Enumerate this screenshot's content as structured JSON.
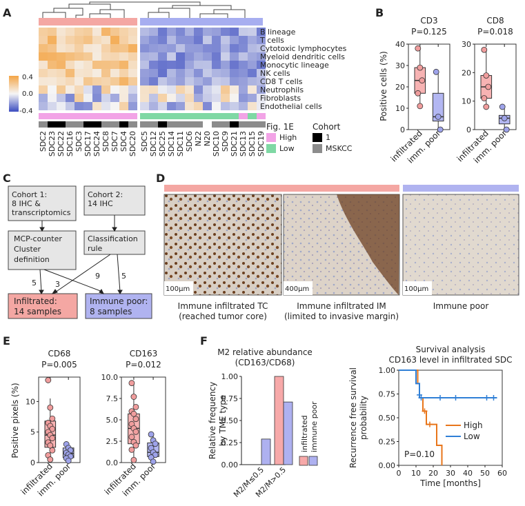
{
  "panel_labels": [
    "A",
    "B",
    "C",
    "D",
    "E",
    "F"
  ],
  "heatmap": {
    "type": "heatmap",
    "samples": [
      "SDC2",
      "SDC23",
      "SDC22",
      "SDC16",
      "SDC3",
      "SDC17",
      "SDC24",
      "SDC8",
      "SDC7",
      "SDC4",
      "SDC20",
      "SDC5",
      "SDC12",
      "SDC25",
      "SDC14",
      "SDC11",
      "SDC6",
      "N22",
      "N20",
      "SDC10",
      "SDC9",
      "SDC21",
      "SDC13",
      "SDC15",
      "SDC19"
    ],
    "cell_types": [
      "B lineage",
      "T cells",
      "Cytotoxic lymphocytes",
      "Myeloid dendritic cells",
      "Monocytic lineage",
      "NK cells",
      "CD8 T cells",
      "Neutrophils",
      "Fibroblasts",
      "Endothelial cells"
    ],
    "color_scale": {
      "ticks": [
        "0.4",
        "0.0",
        "-0.4"
      ],
      "low": "#3b4cc0",
      "mid": "#f5f5f5",
      "high": "#f4a546"
    },
    "fig1e_labels": {
      "title": "Fig. 1E",
      "high": "High",
      "low": "Low",
      "high_color": "#f2a3e6",
      "low_color": "#7fd8a4"
    },
    "cohort_labels": {
      "title": "Cohort",
      "c1": "1",
      "mskcc": "MSKCC",
      "c1_color": "#000000",
      "mskcc_color": "#8c8c8c"
    },
    "group_bar_colors": {
      "infiltrated": "#f4a7a3",
      "poor": "#a7aef0"
    }
  },
  "panel_b": {
    "ylabel": "Positive cells (%)",
    "plots": [
      {
        "title": "CD3",
        "pvalue": "P=0.125",
        "ylim": [
          0,
          40
        ],
        "ticks": [
          0,
          10,
          20,
          30,
          40
        ],
        "groups": [
          {
            "name": "infiltrated",
            "q1": 17,
            "median": 23,
            "q3": 29,
            "min": 11,
            "max": 38,
            "points": [
              38,
              29,
              23,
              17,
              11
            ]
          },
          {
            "name": "imm. poor",
            "q1": 4,
            "median": 6,
            "q3": 17,
            "min": 0,
            "max": 27,
            "points": [
              27,
              6,
              0
            ]
          }
        ]
      },
      {
        "title": "CD8",
        "pvalue": "P=0.018",
        "ylim": [
          0,
          30
        ],
        "ticks": [
          0,
          10,
          20,
          30
        ],
        "groups": [
          {
            "name": "infiltrated",
            "q1": 11,
            "median": 15,
            "q3": 19,
            "min": 8,
            "max": 28,
            "points": [
              28,
              19,
              15,
              11,
              8
            ]
          },
          {
            "name": "imm. poor",
            "q1": 2,
            "median": 4,
            "q3": 5,
            "min": 0,
            "max": 8,
            "points": [
              8,
              4,
              0
            ]
          }
        ]
      }
    ],
    "xlabels": [
      "infiltrated",
      "imm. poor"
    ],
    "colors": {
      "infiltrated": "#f7b3b3",
      "poor": "#b3b7f2",
      "inf_pt": "#f09d9d",
      "poor_pt": "#9ea3ea"
    }
  },
  "panel_c": {
    "cohort1": "Cohort 1:\n8 IHC &\ntranscriptomics",
    "cohort2": "Cohort 2:\n14 IHC",
    "mcp": "MCP-counter\nCluster\ndefinition",
    "rule": "Classification\nrule",
    "infiltrated": "Infiltrated:\n14 samples",
    "poor": "Immune poor:\n8 samples",
    "arrow_counts": [
      "5",
      "3",
      "9",
      "5"
    ]
  },
  "panel_d": {
    "captions": [
      "Immune infiltrated TC\n(reached tumor core)",
      "Immune infiltrated IM\n(limited to invasive margin)",
      "Immune poor"
    ],
    "scalebars": [
      "100µm",
      "400µm",
      "100µm"
    ]
  },
  "panel_e": {
    "ylabel": "Positive pixels (%)",
    "plots": [
      {
        "title": "CD68",
        "pvalue": "P=0.005",
        "ylim": [
          0,
          14
        ],
        "ticks": [
          0.0,
          5.0,
          10.0
        ],
        "tick_labels": [
          "0",
          "5",
          "10"
        ],
        "groups": [
          {
            "name": "infiltrated",
            "q1": 2.5,
            "median": 4.5,
            "q3": 6.8,
            "min": 0.5,
            "max": 10.5,
            "points": [
              13.5,
              9.0,
              7.2,
              6.5,
              6.0,
              5.5,
              5.0,
              4.5,
              4.0,
              3.3,
              2.8,
              2.0,
              1.2,
              0.5
            ]
          },
          {
            "name": "imm. poor",
            "q1": 0.8,
            "median": 1.5,
            "q3": 2.4,
            "min": 0.3,
            "max": 3.0,
            "points": [
              3.0,
              2.4,
              2.0,
              1.6,
              1.3,
              1.0,
              0.7,
              0.3
            ]
          }
        ]
      },
      {
        "title": "CD163",
        "pvalue": "P=0.012",
        "ylim": [
          0,
          10
        ],
        "ticks": [
          0.0,
          2.5,
          5.0,
          7.5,
          10.0
        ],
        "tick_labels": [
          "0.0",
          "2.5",
          "5.0",
          "7.5",
          "10.0"
        ],
        "groups": [
          {
            "name": "infiltrated",
            "q1": 2.2,
            "median": 4.0,
            "q3": 5.7,
            "min": 0.3,
            "max": 9.3,
            "points": [
              9.3,
              7.7,
              6.5,
              6.0,
              5.7,
              5.1,
              4.5,
              4.0,
              3.6,
              3.0,
              2.4,
              2.0,
              1.5,
              0.3
            ]
          },
          {
            "name": "imm. poor",
            "q1": 0.7,
            "median": 1.2,
            "q3": 2.3,
            "min": 0.1,
            "max": 3.3,
            "points": [
              3.3,
              2.6,
              2.2,
              1.7,
              1.2,
              0.9,
              0.6,
              0.1
            ]
          }
        ]
      }
    ],
    "xlabels": [
      "infiltrated",
      "imm. poor"
    ]
  },
  "panel_f_bar": {
    "type": "bar",
    "title": "M2 relative abundance\n(CD163/CD68)",
    "ylabel": "Relative frequency\nby TME type",
    "categories": [
      "M2/M≤0.5",
      "M2/M>0.5"
    ],
    "series": [
      {
        "name": "infiltrated",
        "values": [
          0.0,
          1.0
        ],
        "color": "#f7a9a9"
      },
      {
        "name": "immune poor",
        "values": [
          0.29,
          0.71
        ],
        "color": "#aeb1f0"
      }
    ],
    "ylim": [
      0,
      1
    ],
    "ticks": [
      "0.00",
      "0.25",
      "0.50",
      "0.75",
      "1.00"
    ]
  },
  "panel_f_km": {
    "type": "line",
    "title": "Survival analysis\nCD163 level in infiltrated SDC",
    "ylabel": "Recurrence free survival\nprobability",
    "xlabel": "Time [months]",
    "pvalue": "P=0.10",
    "xlim": [
      0,
      60
    ],
    "ylim": [
      0,
      1
    ],
    "xticks": [
      0,
      10,
      20,
      30,
      40,
      50,
      60
    ],
    "yticks": [
      "0.00",
      "0.25",
      "0.50",
      "0.75",
      "1.00"
    ],
    "series": [
      {
        "name": "High",
        "color": "#e8751a",
        "steps": [
          [
            0,
            1.0
          ],
          [
            11,
            1.0
          ],
          [
            11,
            0.86
          ],
          [
            12,
            0.86
          ],
          [
            12,
            0.71
          ],
          [
            14,
            0.71
          ],
          [
            14,
            0.57
          ],
          [
            16,
            0.57
          ],
          [
            16,
            0.43
          ],
          [
            22,
            0.43
          ],
          [
            22,
            0.21
          ],
          [
            25,
            0.21
          ],
          [
            25,
            0.0
          ]
        ],
        "censors": [
          [
            15,
            0.57
          ],
          [
            18,
            0.43
          ]
        ]
      },
      {
        "name": "Low",
        "color": "#2f7fd6",
        "steps": [
          [
            0,
            1.0
          ],
          [
            10,
            1.0
          ],
          [
            10,
            0.86
          ],
          [
            12,
            0.86
          ],
          [
            12,
            0.71
          ],
          [
            57,
            0.71
          ]
        ],
        "censors": [
          [
            12,
            0.74
          ],
          [
            13,
            0.71
          ],
          [
            24,
            0.71
          ],
          [
            33,
            0.71
          ],
          [
            51,
            0.71
          ],
          [
            55,
            0.71
          ]
        ]
      }
    ]
  }
}
